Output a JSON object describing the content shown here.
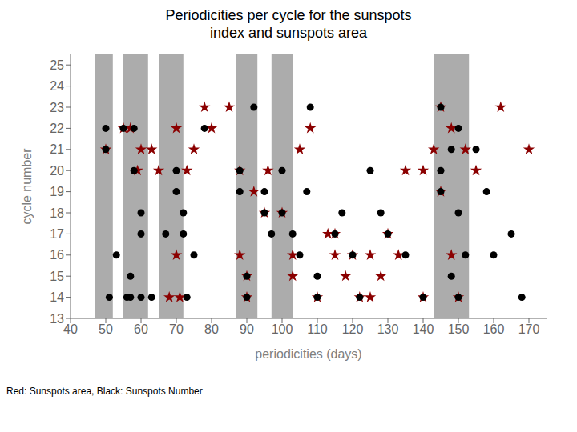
{
  "chart_data": {
    "type": "scatter",
    "title": "Periodicities per cycle for the sunspots\n index and sunspots area",
    "x_label": "periodicities (days)",
    "y_label": "cycle number",
    "caption": "Red: Sunspots area, Black: Sunspots Number",
    "xlim": [
      40,
      175
    ],
    "ylim": [
      13,
      25.5
    ],
    "xticks": [
      40,
      50,
      60,
      70,
      80,
      90,
      100,
      110,
      120,
      130,
      140,
      150,
      160,
      170
    ],
    "yticks": [
      13,
      14,
      15,
      16,
      17,
      18,
      19,
      20,
      21,
      22,
      23,
      24,
      25
    ],
    "bands": [
      [
        47,
        52
      ],
      [
        55,
        62
      ],
      [
        65,
        72
      ],
      [
        87,
        93
      ],
      [
        97,
        103
      ],
      [
        143,
        153
      ]
    ],
    "bands_color": "gray",
    "series": [
      {
        "color": "black",
        "marker": "circle",
        "x": [
          50,
          50,
          51,
          53,
          55,
          56,
          57,
          57,
          58,
          58,
          60,
          60,
          60,
          63,
          67,
          70,
          70,
          72,
          72,
          73,
          75,
          78,
          88,
          88,
          90,
          90,
          92,
          95,
          95,
          97,
          100,
          100,
          103,
          105,
          107,
          108,
          110,
          110,
          115,
          117,
          120,
          122,
          125,
          128,
          130,
          135,
          140,
          145,
          145,
          145,
          148,
          148,
          150,
          150,
          150,
          152,
          155,
          158,
          160,
          165,
          168
        ],
        "values": [
          21,
          22,
          14,
          16,
          22,
          14,
          14,
          15,
          20,
          22,
          14,
          17,
          18,
          14,
          17,
          19,
          20,
          17,
          18,
          14,
          16,
          22,
          19,
          20,
          14,
          15,
          23,
          18,
          19,
          17,
          18,
          20,
          17,
          16,
          19,
          23,
          14,
          15,
          17,
          18,
          16,
          14,
          20,
          18,
          17,
          16,
          14,
          19,
          20,
          23,
          15,
          21,
          14,
          18,
          22,
          16,
          21,
          19,
          16,
          17,
          14
        ]
      },
      {
        "color": "darkred",
        "marker": "star",
        "x": [
          50,
          55,
          57,
          59,
          60,
          63,
          65,
          68,
          70,
          70,
          71,
          73,
          75,
          78,
          80,
          85,
          88,
          88,
          90,
          90,
          92,
          95,
          96,
          100,
          103,
          103,
          105,
          108,
          110,
          113,
          115,
          115,
          118,
          120,
          122,
          125,
          125,
          128,
          130,
          133,
          135,
          140,
          140,
          143,
          145,
          145,
          148,
          148,
          150,
          152,
          155,
          162,
          170
        ],
        "values": [
          21,
          22,
          22,
          20,
          21,
          21,
          20,
          14,
          16,
          22,
          14,
          20,
          21,
          23,
          22,
          23,
          16,
          20,
          14,
          15,
          19,
          18,
          20,
          18,
          15,
          16,
          21,
          22,
          14,
          17,
          16,
          17,
          15,
          16,
          14,
          14,
          16,
          15,
          17,
          16,
          20,
          14,
          20,
          21,
          19,
          23,
          16,
          22,
          14,
          21,
          20,
          23,
          21
        ]
      }
    ]
  }
}
